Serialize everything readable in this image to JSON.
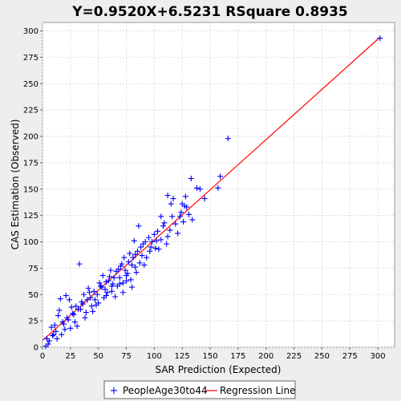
{
  "chart_data": {
    "type": "scatter",
    "title": "Y=0.9520X+6.5231    RSquare 0.8935",
    "xlabel": "SAR Prediction (Expected)",
    "ylabel": "CAS Estimation (Observed)",
    "xlim": [
      0,
      315
    ],
    "ylim": [
      0,
      308
    ],
    "x_ticks": [
      0,
      25,
      50,
      75,
      100,
      125,
      150,
      175,
      200,
      225,
      250,
      275,
      300
    ],
    "y_ticks": [
      0,
      25,
      50,
      75,
      100,
      125,
      150,
      175,
      200,
      225,
      250,
      275,
      300
    ],
    "grid": true,
    "legend_position": "bottom",
    "series": [
      {
        "name": "PeopleAge30to44",
        "kind": "scatter",
        "marker": "plus",
        "color": "#0000ff",
        "points": [
          [
            302,
            293
          ],
          [
            166,
            198
          ],
          [
            159,
            162
          ],
          [
            157,
            151
          ],
          [
            133,
            160
          ],
          [
            145,
            141
          ],
          [
            141,
            150
          ],
          [
            138,
            151
          ],
          [
            134,
            121
          ],
          [
            127,
            134
          ],
          [
            123,
            124
          ],
          [
            112,
            144
          ],
          [
            115,
            136
          ],
          [
            117,
            141
          ],
          [
            125,
            136
          ],
          [
            128,
            143
          ],
          [
            106,
            124
          ],
          [
            108,
            115
          ],
          [
            112,
            105
          ],
          [
            104,
            93
          ],
          [
            96,
            91
          ],
          [
            88,
            95
          ],
          [
            86,
            115
          ],
          [
            82,
            101
          ],
          [
            78,
            89
          ],
          [
            91,
            78
          ],
          [
            84,
            71
          ],
          [
            75,
            68
          ],
          [
            72,
            61
          ],
          [
            80,
            57
          ],
          [
            72,
            52
          ],
          [
            65,
            48
          ],
          [
            62,
            58
          ],
          [
            57,
            62
          ],
          [
            55,
            47
          ],
          [
            48,
            40
          ],
          [
            45,
            34
          ],
          [
            42,
            52
          ],
          [
            38,
            28
          ],
          [
            35,
            43
          ],
          [
            33,
            79
          ],
          [
            31,
            20
          ],
          [
            27,
            32
          ],
          [
            24,
            45
          ],
          [
            20,
            17
          ],
          [
            18,
            24
          ],
          [
            16,
            46
          ],
          [
            14,
            30
          ],
          [
            13,
            8
          ],
          [
            11,
            21
          ],
          [
            9,
            11
          ],
          [
            8,
            19
          ],
          [
            6,
            6
          ],
          [
            5,
            3
          ],
          [
            4,
            8
          ],
          [
            3,
            1
          ],
          [
            12,
            15
          ],
          [
            15,
            35
          ],
          [
            17,
            12
          ],
          [
            22,
            28
          ],
          [
            26,
            38
          ],
          [
            29,
            24
          ],
          [
            34,
            36
          ],
          [
            37,
            50
          ],
          [
            41,
            56
          ],
          [
            44,
            39
          ],
          [
            47,
            45
          ],
          [
            51,
            61
          ],
          [
            54,
            68
          ],
          [
            58,
            52
          ],
          [
            61,
            73
          ],
          [
            64,
            66
          ],
          [
            67,
            58
          ],
          [
            70,
            77
          ],
          [
            73,
            85
          ],
          [
            76,
            70
          ],
          [
            79,
            64
          ],
          [
            83,
            88
          ],
          [
            87,
            80
          ],
          [
            90,
            98
          ],
          [
            93,
            85
          ],
          [
            95,
            104
          ],
          [
            98,
            100
          ],
          [
            101,
            94
          ],
          [
            103,
            110
          ],
          [
            106,
            102
          ],
          [
            109,
            118
          ],
          [
            111,
            98
          ],
          [
            114,
            111
          ],
          [
            116,
            124
          ],
          [
            119,
            117
          ],
          [
            121,
            108
          ],
          [
            124,
            128
          ],
          [
            126,
            119
          ],
          [
            129,
            133
          ],
          [
            131,
            126
          ],
          [
            52,
            58
          ],
          [
            56,
            55
          ],
          [
            60,
            67
          ],
          [
            63,
            60
          ],
          [
            66,
            72
          ],
          [
            69,
            66
          ],
          [
            71,
            79
          ],
          [
            74,
            73
          ],
          [
            77,
            81
          ],
          [
            80,
            78
          ],
          [
            85,
            91
          ],
          [
            89,
            87
          ],
          [
            92,
            100
          ],
          [
            97,
            95
          ],
          [
            100,
            107
          ],
          [
            102,
            101
          ],
          [
            40,
            45
          ],
          [
            43,
            47
          ],
          [
            46,
            53
          ],
          [
            49,
            50
          ],
          [
            53,
            57
          ],
          [
            59,
            63
          ],
          [
            68,
            74
          ],
          [
            81,
            85
          ],
          [
            36,
            41
          ],
          [
            32,
            36
          ],
          [
            28,
            31
          ],
          [
            23,
            26
          ],
          [
            19,
            22
          ],
          [
            10,
            12
          ],
          [
            21,
            49
          ],
          [
            25,
            18
          ],
          [
            30,
            39
          ],
          [
            39,
            33
          ],
          [
            50,
            42
          ],
          [
            57,
            49
          ],
          [
            62,
            53
          ],
          [
            69,
            60
          ],
          [
            75,
            63
          ],
          [
            83,
            76
          ]
        ]
      },
      {
        "name": "Regression Line",
        "kind": "line",
        "color": "#ff0000",
        "slope": 0.952,
        "intercept": 6.5231,
        "x_range": [
          0,
          302
        ]
      }
    ]
  }
}
